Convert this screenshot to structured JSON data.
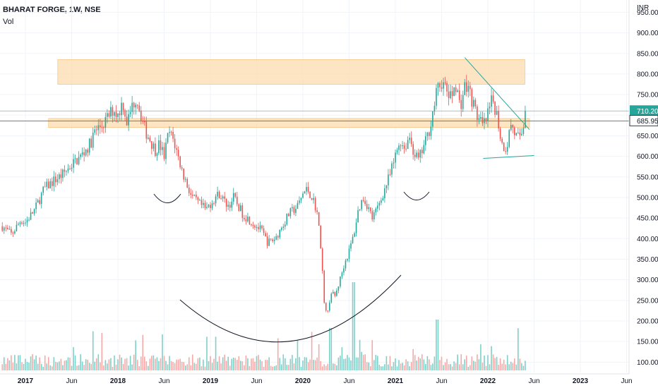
{
  "header": {
    "title": "BHARAT FORGE, 1W, NSE",
    "volume_label": "Vol"
  },
  "price_axis": {
    "currency": "INR",
    "ticks": [
      "950.00",
      "900.00",
      "850.00",
      "800.00",
      "750.00",
      "700.00",
      "650.00",
      "600.00",
      "550.00",
      "500.00",
      "450.00",
      "400.00",
      "350.00",
      "300.00",
      "250.00",
      "200.00",
      "150.00",
      "100.00"
    ],
    "last_price_label": "710.20",
    "level_label": "685.95"
  },
  "time_axis": {
    "ticks": [
      "2017",
      "Jun",
      "2018",
      "Jun",
      "2019",
      "Jun",
      "2020",
      "Jun",
      "2021",
      "Jun",
      "2022",
      "Jun",
      "2023",
      "Jun"
    ]
  },
  "colors": {
    "up": "#26a69a",
    "down": "#ef5350",
    "up_vol": "#7fd0c8",
    "down_vol": "#f7a9a7",
    "zone": "#fcdcb0",
    "zone_border": "#f7b764",
    "trendline": "#26a69a",
    "price_tag": "#26a69a",
    "level_tag": "#ffffff",
    "level_line": "#787b86",
    "pattern_curve": "#131722"
  },
  "chart_data": {
    "type": "candlestick",
    "interval": "1W",
    "symbol": "BHARAT FORGE",
    "exchange": "NSE",
    "ylim": [
      80,
      985
    ],
    "xlim": [
      2016.75,
      2023.5
    ],
    "last_price": 710.2,
    "horizontal_level": 685.95,
    "resistance_zone": {
      "x": [
        2017.35,
        2022.4
      ],
      "y": [
        775,
        835
      ]
    },
    "support_zone": {
      "x": [
        2017.25,
        2022.45
      ],
      "y": [
        670,
        692
      ]
    },
    "falling_trendline": {
      "x": [
        2021.75,
        2022.45
      ],
      "y": [
        840,
        665
      ]
    },
    "rising_trendline": {
      "x": [
        2021.95,
        2022.5
      ],
      "y": [
        595,
        602
      ]
    },
    "price_path": [
      [
        2016.75,
        430
      ],
      [
        2016.85,
        410
      ],
      [
        2016.95,
        445
      ],
      [
        2017.0,
        440
      ],
      [
        2017.1,
        470
      ],
      [
        2017.2,
        520
      ],
      [
        2017.3,
        540
      ],
      [
        2017.4,
        555
      ],
      [
        2017.5,
        580
      ],
      [
        2017.6,
        600
      ],
      [
        2017.7,
        630
      ],
      [
        2017.75,
        660
      ],
      [
        2017.85,
        680
      ],
      [
        2017.95,
        715
      ],
      [
        2018.0,
        700
      ],
      [
        2018.05,
        735
      ],
      [
        2018.1,
        680
      ],
      [
        2018.15,
        720
      ],
      [
        2018.2,
        745
      ],
      [
        2018.25,
        700
      ],
      [
        2018.3,
        660
      ],
      [
        2018.35,
        640
      ],
      [
        2018.4,
        615
      ],
      [
        2018.45,
        630
      ],
      [
        2018.5,
        600
      ],
      [
        2018.55,
        660
      ],
      [
        2018.6,
        640
      ],
      [
        2018.65,
        600
      ],
      [
        2018.7,
        560
      ],
      [
        2018.75,
        530
      ],
      [
        2018.8,
        500
      ],
      [
        2018.9,
        480
      ],
      [
        2018.95,
        470
      ],
      [
        2019.0,
        485
      ],
      [
        2019.05,
        500
      ],
      [
        2019.1,
        510
      ],
      [
        2019.15,
        490
      ],
      [
        2019.2,
        480
      ],
      [
        2019.25,
        500
      ],
      [
        2019.35,
        460
      ],
      [
        2019.45,
        440
      ],
      [
        2019.55,
        420
      ],
      [
        2019.62,
        390
      ],
      [
        2019.7,
        400
      ],
      [
        2019.75,
        420
      ],
      [
        2019.8,
        440
      ],
      [
        2019.85,
        460
      ],
      [
        2019.95,
        480
      ],
      [
        2020.0,
        510
      ],
      [
        2020.05,
        520
      ],
      [
        2020.1,
        500
      ],
      [
        2020.15,
        470
      ],
      [
        2020.2,
        370
      ],
      [
        2020.23,
        240
      ],
      [
        2020.27,
        220
      ],
      [
        2020.3,
        270
      ],
      [
        2020.35,
        260
      ],
      [
        2020.4,
        300
      ],
      [
        2020.45,
        340
      ],
      [
        2020.5,
        370
      ],
      [
        2020.55,
        410
      ],
      [
        2020.6,
        470
      ],
      [
        2020.65,
        500
      ],
      [
        2020.7,
        480
      ],
      [
        2020.75,
        450
      ],
      [
        2020.8,
        470
      ],
      [
        2020.85,
        500
      ],
      [
        2020.9,
        530
      ],
      [
        2020.95,
        560
      ],
      [
        2021.0,
        600
      ],
      [
        2021.05,
        640
      ],
      [
        2021.1,
        620
      ],
      [
        2021.15,
        650
      ],
      [
        2021.2,
        610
      ],
      [
        2021.25,
        590
      ],
      [
        2021.3,
        620
      ],
      [
        2021.35,
        650
      ],
      [
        2021.4,
        700
      ],
      [
        2021.45,
        760
      ],
      [
        2021.5,
        780
      ],
      [
        2021.55,
        760
      ],
      [
        2021.6,
        740
      ],
      [
        2021.65,
        780
      ],
      [
        2021.7,
        720
      ],
      [
        2021.75,
        770
      ],
      [
        2021.8,
        760
      ],
      [
        2021.85,
        720
      ],
      [
        2021.9,
        690
      ],
      [
        2021.95,
        670
      ],
      [
        2022.0,
        700
      ],
      [
        2022.05,
        740
      ],
      [
        2022.1,
        700
      ],
      [
        2022.15,
        630
      ],
      [
        2022.2,
        620
      ],
      [
        2022.25,
        680
      ],
      [
        2022.3,
        650
      ],
      [
        2022.35,
        640
      ],
      [
        2022.42,
        710
      ]
    ]
  }
}
